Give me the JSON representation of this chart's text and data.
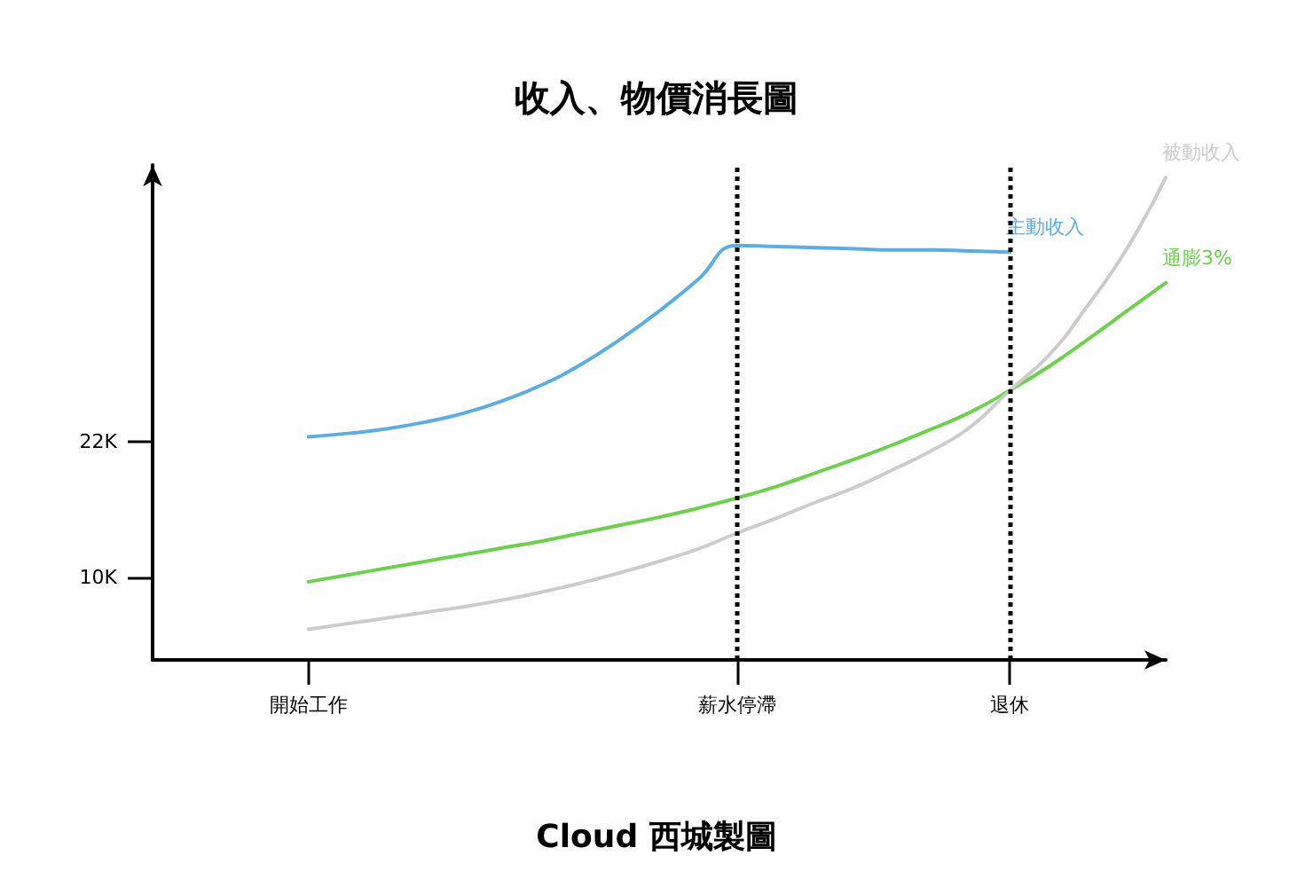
{
  "chart_data": {
    "type": "line",
    "title": "收入、物價消長圖",
    "annotations": [
      "Cloud 西城製圖"
    ],
    "categories": [
      null,
      null,
      null,
      null,
      "開始工作",
      null,
      null,
      null,
      null,
      null,
      null,
      null,
      null,
      null,
      null,
      "薪水停滯",
      null,
      null,
      null,
      null,
      null,
      null,
      "退休",
      null,
      null,
      null,
      null
    ],
    "ylim": [
      2.7,
      46.4
    ],
    "yticks": [
      {
        "value": 10,
        "label": "10K"
      },
      {
        "value": 22,
        "label": "22K"
      }
    ],
    "grid": false,
    "marker": "none",
    "line_style": "solid",
    "ref_lines": [
      {
        "axis": "x",
        "value": "薪水停滯",
        "line_style": "dotted",
        "color": "#000000"
      },
      {
        "axis": "x",
        "value": "退休",
        "line_style": "dotted",
        "color": "#000000"
      }
    ],
    "series": [
      {
        "name": "主動收入",
        "color": "#5dade2",
        "values": [
          null,
          null,
          null,
          null,
          22.4,
          22.7,
          23.1,
          23.7,
          24.5,
          25.6,
          27.0,
          28.8,
          31.0,
          33.5,
          36.3,
          39.3,
          39.2,
          39.1,
          39.0,
          38.9,
          38.9,
          38.8,
          38.7,
          null,
          null,
          null,
          null
        ]
      },
      {
        "name": "通膨3%",
        "color": "#6fcf4f",
        "values": [
          null,
          null,
          null,
          null,
          9.6,
          10.2,
          10.8,
          11.4,
          12.0,
          12.6,
          13.2,
          13.9,
          14.6,
          15.3,
          16.1,
          17.0,
          18.0,
          19.2,
          20.4,
          21.7,
          23.1,
          24.6,
          26.5,
          28.6,
          31.0,
          33.5,
          36.0
        ]
      },
      {
        "name": "被動收入",
        "color": "#cccccc",
        "values": [
          null,
          null,
          null,
          null,
          5.4,
          5.9,
          6.4,
          6.9,
          7.4,
          8.0,
          8.7,
          9.5,
          10.4,
          11.4,
          12.5,
          13.9,
          15.2,
          16.6,
          17.9,
          19.5,
          21.2,
          23.3,
          26.5,
          29.6,
          34.0,
          39.0,
          45.3
        ]
      }
    ]
  }
}
